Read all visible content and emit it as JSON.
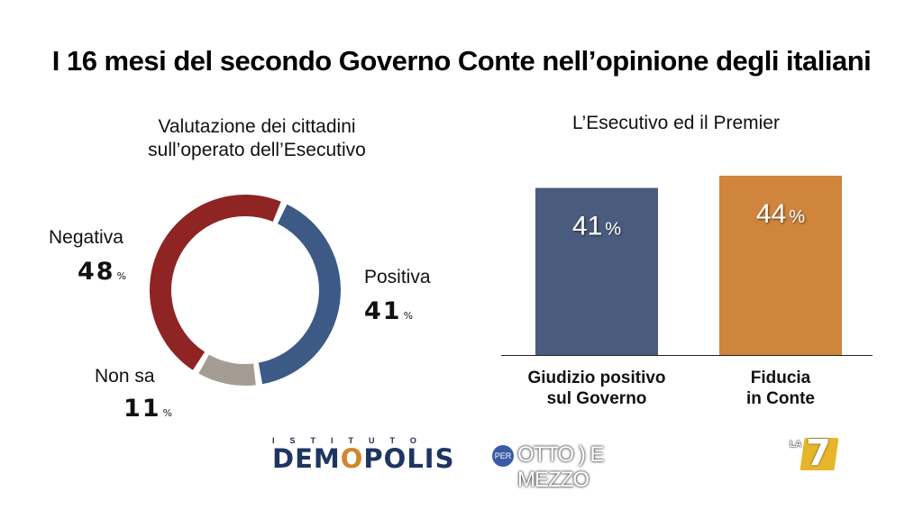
{
  "title": "I 16 mesi del secondo Governo Conte nell’opinione degli italiani",
  "chart_data": [
    {
      "type": "pie",
      "title_line1": "Valutazione dei cittadini",
      "title_line2": "sull’operato dell’Esecutivo",
      "slices": [
        {
          "label": "Positiva",
          "value": 41,
          "display": "41",
          "color": "#3d5a87"
        },
        {
          "label": "Non sa",
          "value": 11,
          "display": "11",
          "color": "#a59d93"
        },
        {
          "label": "Negativa",
          "value": 48,
          "display": "48",
          "color": "#8f2424"
        }
      ],
      "unit": "%"
    },
    {
      "type": "bar",
      "title": "L’Esecutivo ed il Premier",
      "categories": [
        {
          "line1": "Giudizio positivo",
          "line2": "sul Governo"
        },
        {
          "line1": "Fiducia",
          "line2": "in Conte"
        }
      ],
      "values": [
        41,
        44
      ],
      "value_labels": [
        "41",
        "44"
      ],
      "unit": "%",
      "colors": [
        "#4a5c7e",
        "#cf853c"
      ]
    }
  ],
  "footer": {
    "demopolis_top": "ISTITUTO",
    "demopolis_pre": "DEM",
    "demopolis_o": "O",
    "demopolis_post": "POLIS",
    "oem_per": "PER",
    "oem_text": "OTTO ) E MEZZO",
    "la7_la": "LA",
    "la7_seven": "7"
  }
}
